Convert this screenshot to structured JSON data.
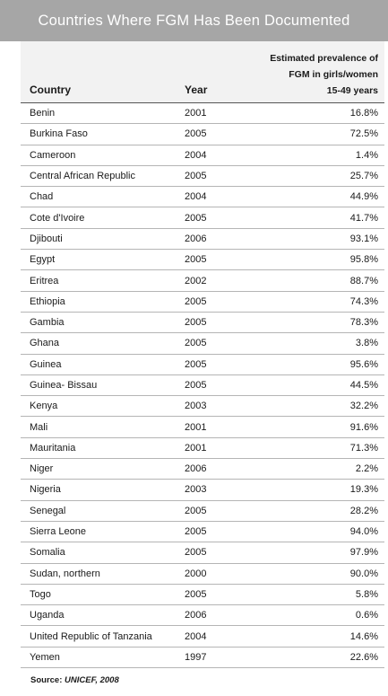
{
  "title": "Countries Where FGM Has Been Documented",
  "headers": {
    "country": "Country",
    "year": "Year",
    "prevalence_line1": "Estimated prevalence of",
    "prevalence_line2": "FGM in girls/women",
    "prevalence_line3": "15-49 years"
  },
  "rows": [
    {
      "country": "Benin",
      "year": "2001",
      "prevalence": "16.8%"
    },
    {
      "country": "Burkina Faso",
      "year": "2005",
      "prevalence": "72.5%"
    },
    {
      "country": "Cameroon",
      "year": "2004",
      "prevalence": "1.4%"
    },
    {
      "country": "Central African Republic",
      "year": "2005",
      "prevalence": "25.7%"
    },
    {
      "country": "Chad",
      "year": "2004",
      "prevalence": "44.9%"
    },
    {
      "country": "Cote d'Ivoire",
      "year": "2005",
      "prevalence": "41.7%"
    },
    {
      "country": "Djibouti",
      "year": "2006",
      "prevalence": "93.1%"
    },
    {
      "country": "Egypt",
      "year": "2005",
      "prevalence": "95.8%"
    },
    {
      "country": "Eritrea",
      "year": "2002",
      "prevalence": "88.7%"
    },
    {
      "country": "Ethiopia",
      "year": "2005",
      "prevalence": "74.3%"
    },
    {
      "country": "Gambia",
      "year": "2005",
      "prevalence": "78.3%"
    },
    {
      "country": "Ghana",
      "year": "2005",
      "prevalence": "3.8%"
    },
    {
      "country": "Guinea",
      "year": "2005",
      "prevalence": "95.6%"
    },
    {
      "country": "Guinea- Bissau",
      "year": "2005",
      "prevalence": "44.5%"
    },
    {
      "country": "Kenya",
      "year": "2003",
      "prevalence": "32.2%"
    },
    {
      "country": "Mali",
      "year": "2001",
      "prevalence": "91.6%"
    },
    {
      "country": "Mauritania",
      "year": "2001",
      "prevalence": "71.3%"
    },
    {
      "country": "Niger",
      "year": "2006",
      "prevalence": "2.2%"
    },
    {
      "country": "Nigeria",
      "year": "2003",
      "prevalence": "19.3%"
    },
    {
      "country": "Senegal",
      "year": "2005",
      "prevalence": "28.2%"
    },
    {
      "country": "Sierra Leone",
      "year": "2005",
      "prevalence": "94.0%"
    },
    {
      "country": "Somalia",
      "year": "2005",
      "prevalence": "97.9%"
    },
    {
      "country": "Sudan, northern",
      "year": "2000",
      "prevalence": "90.0%"
    },
    {
      "country": "Togo",
      "year": "2005",
      "prevalence": "5.8%"
    },
    {
      "country": "Uganda",
      "year": "2006",
      "prevalence": "0.6%"
    },
    {
      "country": "United Republic of Tanzania",
      "year": "2004",
      "prevalence": "14.6%"
    },
    {
      "country": "Yemen",
      "year": "1997",
      "prevalence": "22.6%"
    }
  ],
  "source": {
    "label": "Source: ",
    "value": "UNICEF, 2008"
  }
}
